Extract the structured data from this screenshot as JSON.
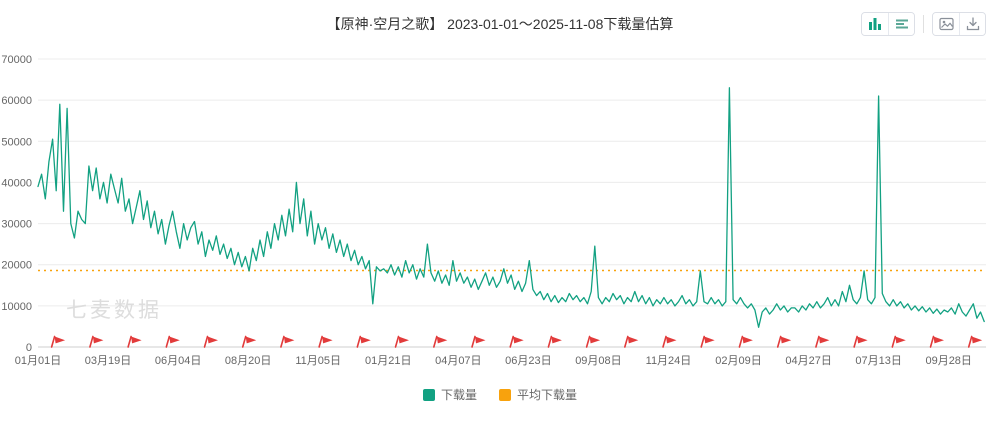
{
  "header": {
    "title": "【原神·空月之歌】 2023-01-01～2025-11-08下载量估算",
    "icons": [
      "bar-chart-icon",
      "list-icon",
      "export-image-icon",
      "download-icon"
    ]
  },
  "watermark": "七麦数据",
  "legend": {
    "items": [
      {
        "label": "下载量",
        "color": "#12a182"
      },
      {
        "label": "平均下载量",
        "color": "#f8a20d"
      }
    ]
  },
  "chart_data": {
    "type": "line",
    "title": "【原神·空月之歌】 2023-01-01～2025-11-08下载量估算",
    "xlabel": "",
    "ylabel": "",
    "ylim": [
      0,
      70000
    ],
    "y_ticks": [
      0,
      10000,
      20000,
      30000,
      40000,
      50000,
      60000,
      70000
    ],
    "grid": true,
    "legend_position": "bottom",
    "x_total_days": 1042,
    "x_ticks": [
      {
        "day": 0,
        "label": "01月01日"
      },
      {
        "day": 77,
        "label": "03月19日"
      },
      {
        "day": 154,
        "label": "06月04日"
      },
      {
        "day": 231,
        "label": "08月20日"
      },
      {
        "day": 308,
        "label": "11月05日"
      },
      {
        "day": 385,
        "label": "01月21日"
      },
      {
        "day": 462,
        "label": "04月07日"
      },
      {
        "day": 539,
        "label": "06月23日"
      },
      {
        "day": 616,
        "label": "09月08日"
      },
      {
        "day": 693,
        "label": "11月24日"
      },
      {
        "day": 770,
        "label": "02月09日"
      },
      {
        "day": 847,
        "label": "04月27日"
      },
      {
        "day": 924,
        "label": "07月13日"
      },
      {
        "day": 1001,
        "label": "09月28日"
      }
    ],
    "flags": {
      "color": "#e23b3b",
      "days": [
        15,
        57,
        99,
        141,
        183,
        225,
        267,
        309,
        351,
        393,
        435,
        477,
        519,
        561,
        603,
        645,
        687,
        729,
        771,
        813,
        855,
        897,
        939,
        981,
        1023
      ]
    },
    "series": [
      {
        "name": "下载量",
        "color": "#12a182",
        "sample_interval_days": 4,
        "values": [
          39000,
          42000,
          36000,
          45000,
          50500,
          38000,
          59000,
          33000,
          58000,
          30000,
          26500,
          33000,
          31000,
          30000,
          44000,
          38000,
          43500,
          36000,
          40000,
          35000,
          42000,
          38500,
          35000,
          41000,
          33000,
          36000,
          30000,
          34000,
          38000,
          31000,
          35500,
          29000,
          33000,
          27500,
          31000,
          25000,
          29500,
          33000,
          28000,
          24000,
          30000,
          26000,
          29000,
          30500,
          25000,
          28000,
          22000,
          26000,
          23500,
          27000,
          22500,
          25000,
          21500,
          24000,
          20000,
          23000,
          19500,
          22000,
          18500,
          24000,
          21000,
          26000,
          22000,
          28000,
          24000,
          30000,
          26000,
          32000,
          27000,
          33500,
          28000,
          40000,
          30000,
          36000,
          27000,
          33000,
          25000,
          30000,
          26000,
          29000,
          24000,
          27500,
          23000,
          26000,
          22000,
          25000,
          21000,
          23500,
          20000,
          22000,
          19000,
          21000,
          10500,
          19500,
          18500,
          19000,
          18000,
          20000,
          17500,
          19500,
          17000,
          21000,
          18000,
          20000,
          16500,
          19000,
          17000,
          25000,
          18000,
          16000,
          18500,
          15500,
          17500,
          15000,
          21000,
          16000,
          18000,
          15500,
          17000,
          14500,
          16500,
          14000,
          16000,
          18000,
          15000,
          17000,
          14500,
          16000,
          19000,
          15500,
          17500,
          14000,
          16000,
          13500,
          15500,
          21000,
          14000,
          12500,
          13500,
          11500,
          13000,
          11000,
          12500,
          10800,
          12000,
          11000,
          13000,
          11500,
          12500,
          11000,
          12000,
          10500,
          13500,
          24500,
          12000,
          10500,
          12000,
          11000,
          13000,
          11500,
          12500,
          10500,
          12000,
          11000,
          13500,
          11000,
          12500,
          10500,
          12000,
          10000,
          11500,
          10500,
          12000,
          10500,
          11500,
          10000,
          11000,
          12500,
          10500,
          11500,
          10000,
          11000,
          18500,
          11000,
          10500,
          12000,
          10500,
          11500,
          10000,
          11000,
          63000,
          11500,
          10500,
          12000,
          10500,
          9500,
          10500,
          9000,
          4800,
          8500,
          9500,
          8000,
          9000,
          10500,
          9000,
          10000,
          8500,
          9500,
          9500,
          8500,
          10000,
          9000,
          10500,
          9500,
          11000,
          9500,
          10500,
          12000,
          10000,
          11500,
          10000,
          13500,
          11000,
          15000,
          11500,
          10500,
          12000,
          18500,
          11500,
          10500,
          12000,
          61000,
          13000,
          11000,
          10000,
          11500,
          10000,
          11000,
          9500,
          10500,
          9000,
          10000,
          8800,
          9800,
          8500,
          9500,
          8200,
          9200,
          8000,
          9000,
          8500,
          9500,
          8000,
          10500,
          8500,
          7500,
          9000,
          10500,
          7000,
          8500,
          6200
        ]
      },
      {
        "name": "平均下载量",
        "color": "#f8a20d",
        "style": "dotted",
        "average_value": 18600
      }
    ]
  }
}
